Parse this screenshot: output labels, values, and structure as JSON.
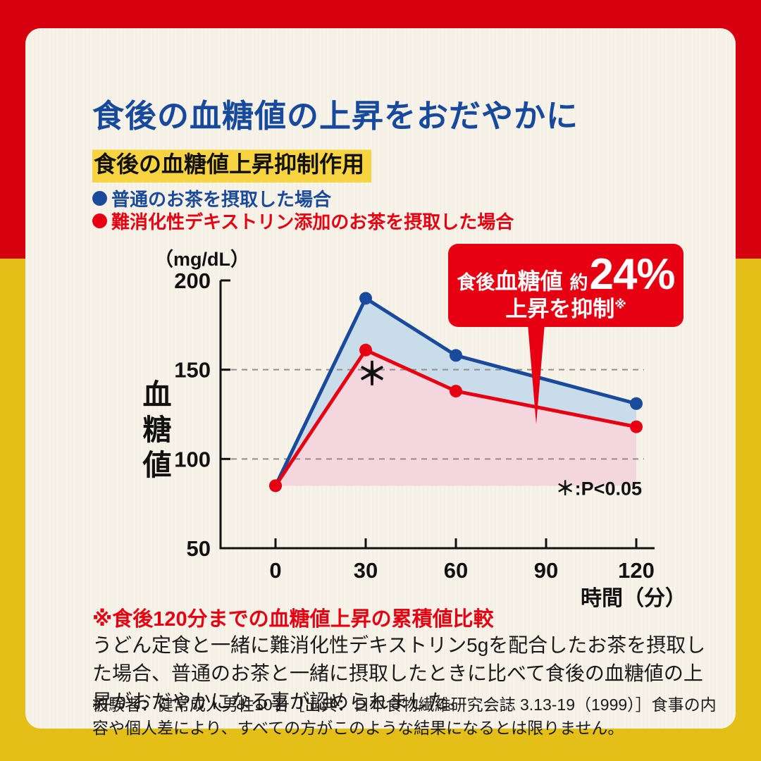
{
  "page": {
    "title": "食後の血糖値の上昇をおだやかに",
    "subtitle": "食後の血糖値上昇抑制作用",
    "legend": [
      {
        "label": "普通のお茶を摂取した場合",
        "color": "#1a4a9c"
      },
      {
        "label": "難消化性デキストリン添加のお茶を摂取した場合",
        "color": "#e60012"
      }
    ],
    "callout": {
      "prefix": "食後",
      "word": "血糖値",
      "approx": "約",
      "percent": "24%",
      "line2": "上昇を抑制",
      "ref_mark": "※"
    },
    "footnote_red": "※食後120分までの血糖値上昇の累積値比較",
    "body_text": "うどん定食と一緒に難消化性デキストリン5gを配合したお茶を摂取した場合、普通のお茶と一緒に摂取したときに比べて食後の血糖値の上昇がおだやかになる事が認められました。",
    "fine_print": "被験者：健常成人男性10名［出典：日本食物繊維研究会誌 3.13-19（1999）］食事の内容や個人差により、すべての方がこのような結果になるとは限りません。"
  },
  "chart_data": {
    "type": "line",
    "unit_label": "（mg/dL）",
    "ylabel": "血糖値",
    "xlabel": "時間（分）",
    "x": [
      0,
      30,
      60,
      120
    ],
    "xticks": [
      0,
      30,
      60,
      90,
      120
    ],
    "yticks": [
      200,
      150,
      100,
      50
    ],
    "ylim": [
      50,
      200
    ],
    "xlim": [
      0,
      120
    ],
    "dashed_gridlines": [
      150,
      100
    ],
    "baseline": 85,
    "series": [
      {
        "name": "普通のお茶を摂取した場合",
        "color": "#1a4a9c",
        "fill": "#c9dcea",
        "values": [
          85,
          190,
          158,
          131
        ]
      },
      {
        "name": "難消化性デキストリン添加のお茶を摂取した場合",
        "color": "#e60012",
        "fill": "#f3d6de",
        "values": [
          85,
          161,
          138,
          118
        ]
      }
    ],
    "significance_star": "＊",
    "significance_note": "＊:P<0.05"
  },
  "colors": {
    "frame_red": "#d6000f",
    "frame_yellow": "#e3bf17",
    "card_bg": "#f7f3e8",
    "title_blue": "#17499d",
    "highlight_yellow": "#f7d440",
    "accent_red": "#e60012",
    "series_blue": "#1a4a9c",
    "series_red": "#e60012"
  }
}
